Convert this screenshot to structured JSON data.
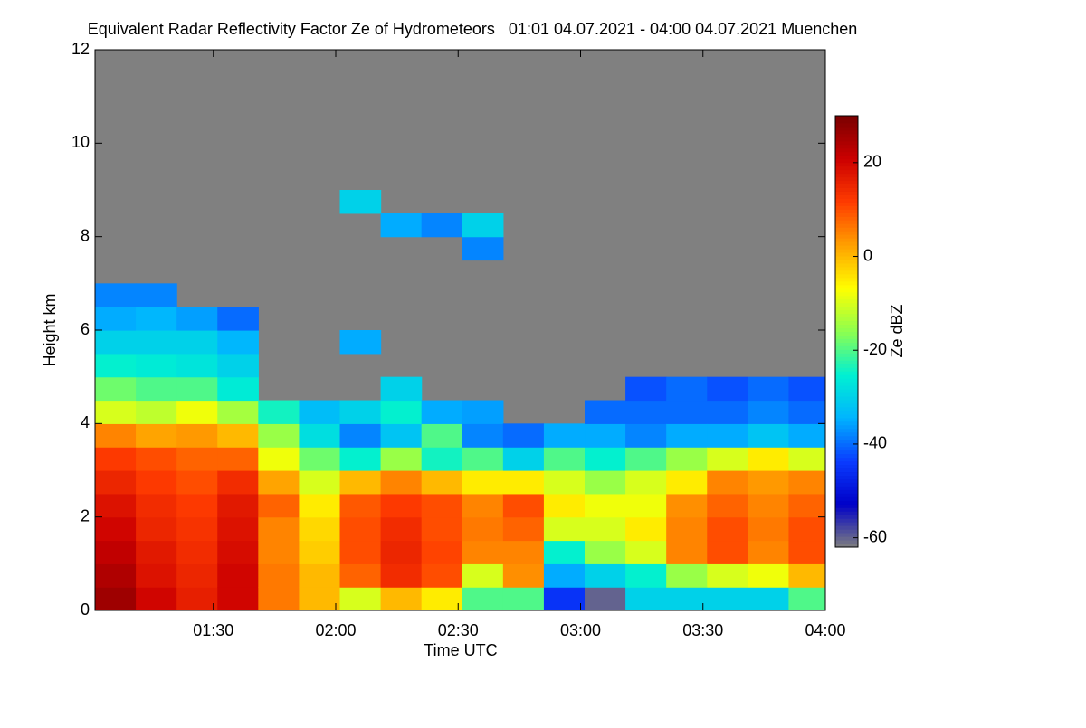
{
  "chart_data": {
    "type": "heatmap",
    "title": "Equivalent Radar Reflectivity Factor Ze of Hydrometeors   01:01 04.07.2021 - 04:00 04.07.2021 Muenchen",
    "xlabel": "Time UTC",
    "ylabel": "Height km",
    "colorbar_label": "Ze dBZ",
    "x": [
      66,
      76,
      86,
      96,
      106,
      116,
      126,
      136,
      146,
      156,
      166,
      176,
      186,
      196,
      206,
      216,
      226,
      236
    ],
    "y": [
      0.25,
      0.75,
      1.25,
      1.75,
      2.25,
      2.75,
      3.25,
      3.75,
      4.25,
      4.75,
      5.25,
      5.75,
      6.25,
      6.75,
      7.25,
      7.75,
      8.25,
      8.75
    ],
    "values": [
      [
        26,
        24,
        22,
        20,
        18,
        15,
        12,
        5,
        -10,
        -18,
        -25,
        -30,
        -35,
        -38,
        null,
        null,
        null,
        null
      ],
      [
        20,
        18,
        17,
        15,
        14,
        12,
        10,
        2,
        -12,
        -20,
        -26,
        -30,
        -34,
        -38,
        null,
        null,
        null,
        null
      ],
      [
        16,
        15,
        14,
        13,
        12,
        10,
        8,
        3,
        -8,
        -20,
        -27,
        -30,
        -36,
        null,
        null,
        null,
        null,
        null
      ],
      [
        20,
        20,
        19,
        18,
        17,
        14,
        8,
        0,
        -14,
        -26,
        -30,
        -34,
        -40,
        null,
        null,
        null,
        null,
        null
      ],
      [
        6,
        6,
        5,
        5,
        8,
        2,
        -8,
        -15,
        -24,
        null,
        null,
        null,
        null,
        null,
        null,
        null,
        null,
        null
      ],
      [
        0,
        0,
        -2,
        -3,
        -5,
        -10,
        -18,
        -28,
        -33,
        null,
        null,
        null,
        null,
        null,
        null,
        null,
        null,
        null
      ],
      [
        -10,
        8,
        10,
        10,
        9,
        0,
        -25,
        -38,
        -30,
        null,
        null,
        -35,
        null,
        null,
        null,
        null,
        null,
        -30
      ],
      [
        0,
        14,
        15,
        14,
        12,
        5,
        -15,
        -32,
        -25,
        -30,
        null,
        null,
        null,
        null,
        null,
        null,
        -35,
        null
      ],
      [
        -5,
        10,
        11,
        10,
        10,
        0,
        -24,
        -20,
        -35,
        null,
        null,
        null,
        null,
        null,
        null,
        null,
        -38,
        null
      ],
      [
        -20,
        -10,
        5,
        6,
        5,
        -5,
        -20,
        -38,
        -36,
        null,
        null,
        null,
        null,
        null,
        null,
        -38,
        -30,
        null
      ],
      [
        -20,
        4,
        5,
        8,
        10,
        -5,
        -30,
        -40,
        null,
        null,
        null,
        null,
        null,
        null,
        null,
        null,
        null,
        null
      ],
      [
        -45,
        -35,
        -25,
        -10,
        -5,
        -10,
        -20,
        -35,
        null,
        null,
        null,
        null,
        null,
        null,
        null,
        null,
        null,
        null
      ],
      [
        -60,
        -30,
        -15,
        -10,
        -8,
        -15,
        -25,
        -35,
        -40,
        null,
        null,
        null,
        null,
        null,
        null,
        null,
        null,
        null
      ],
      [
        -30,
        -25,
        -10,
        -5,
        -8,
        -10,
        -20,
        -38,
        -40,
        -42,
        null,
        null,
        null,
        null,
        null,
        null,
        null,
        null
      ],
      [
        -30,
        -15,
        5,
        5,
        4,
        -5,
        -15,
        -35,
        -40,
        -40,
        null,
        null,
        null,
        null,
        null,
        null,
        null,
        null
      ],
      [
        -30,
        -10,
        10,
        10,
        8,
        5,
        -10,
        -35,
        -40,
        -42,
        null,
        null,
        null,
        null,
        null,
        null,
        null,
        null
      ],
      [
        -30,
        -8,
        5,
        6,
        5,
        3,
        -5,
        -32,
        -38,
        -40,
        null,
        null,
        null,
        null,
        null,
        null,
        null,
        null
      ],
      [
        -20,
        0,
        10,
        10,
        8,
        5,
        -10,
        -35,
        -40,
        -42,
        null,
        null,
        null,
        null,
        null,
        null,
        null,
        null
      ]
    ],
    "xlim": [
      61,
      240
    ],
    "xticks": [
      {
        "value": 90,
        "label": "01:30"
      },
      {
        "value": 120,
        "label": "02:00"
      },
      {
        "value": 150,
        "label": "02:30"
      },
      {
        "value": 180,
        "label": "03:00"
      },
      {
        "value": 210,
        "label": "03:30"
      },
      {
        "value": 240,
        "label": "04:00"
      }
    ],
    "ylim": [
      0,
      12
    ],
    "yticks": [
      0,
      2,
      4,
      6,
      8,
      10,
      12
    ],
    "zlim": [
      -62,
      30
    ],
    "colorbar_ticks": [
      -60,
      -40,
      -20,
      0,
      20
    ],
    "background_color": "#808080",
    "colormap": [
      "#7f7f7f",
      "#0000c8",
      "#0a3cff",
      "#00b4ff",
      "#00f0d2",
      "#8cff50",
      "#ffff00",
      "#ffa000",
      "#ff3c00",
      "#cc0000",
      "#7a0000"
    ]
  }
}
